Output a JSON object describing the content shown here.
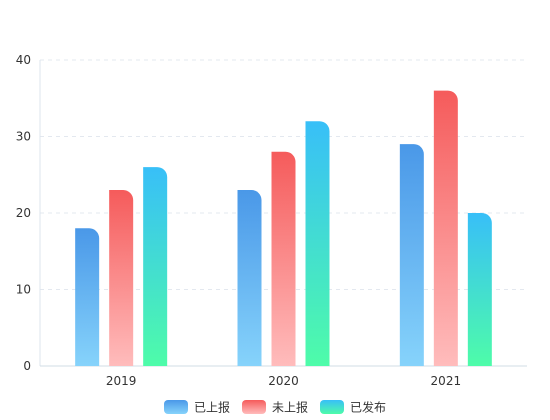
{
  "chart_data": {
    "type": "bar",
    "title": "",
    "xlabel": "",
    "ylabel": "",
    "categories": [
      "2019",
      "2020",
      "2021"
    ],
    "ylim": [
      0,
      40
    ],
    "yticks": [
      0,
      10,
      20,
      30,
      40
    ],
    "grid": true,
    "legend_position": "bottom-center",
    "series": [
      {
        "name": "已上报",
        "values": [
          18,
          23,
          29
        ],
        "color_top": "#4a98e8",
        "color_bottom": "#86d3fb"
      },
      {
        "name": "未上报",
        "values": [
          23,
          28,
          36
        ],
        "color_top": "#f55b5b",
        "color_bottom": "#ffbcbc"
      },
      {
        "name": "已发布",
        "values": [
          26,
          32,
          20
        ],
        "color_top": "#38bff8",
        "color_bottom": "#4efca9"
      }
    ]
  }
}
